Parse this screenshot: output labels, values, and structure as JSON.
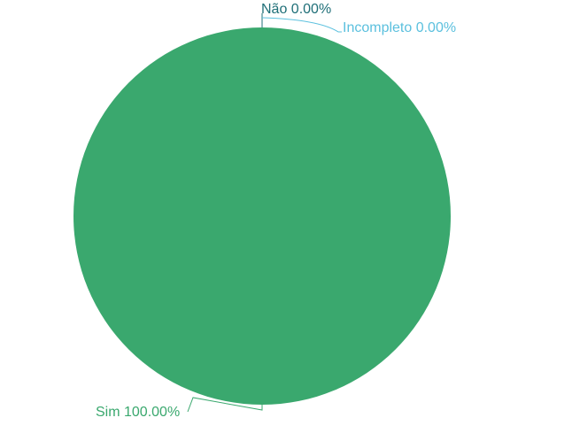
{
  "chart_data": {
    "type": "pie",
    "title": "",
    "slices": [
      {
        "name": "Sim",
        "value": 100.0,
        "label": "Sim 100.00%",
        "color": "#3aa86e"
      },
      {
        "name": "Não",
        "value": 0.0,
        "label": "Não 0.00%",
        "color": "#1f6f78"
      },
      {
        "name": "Incompleto",
        "value": 0.0,
        "label": "Incompleto 0.00%",
        "color": "#5bc0de"
      }
    ],
    "legend": "none",
    "data_labels": "outside-with-leader-lines"
  }
}
